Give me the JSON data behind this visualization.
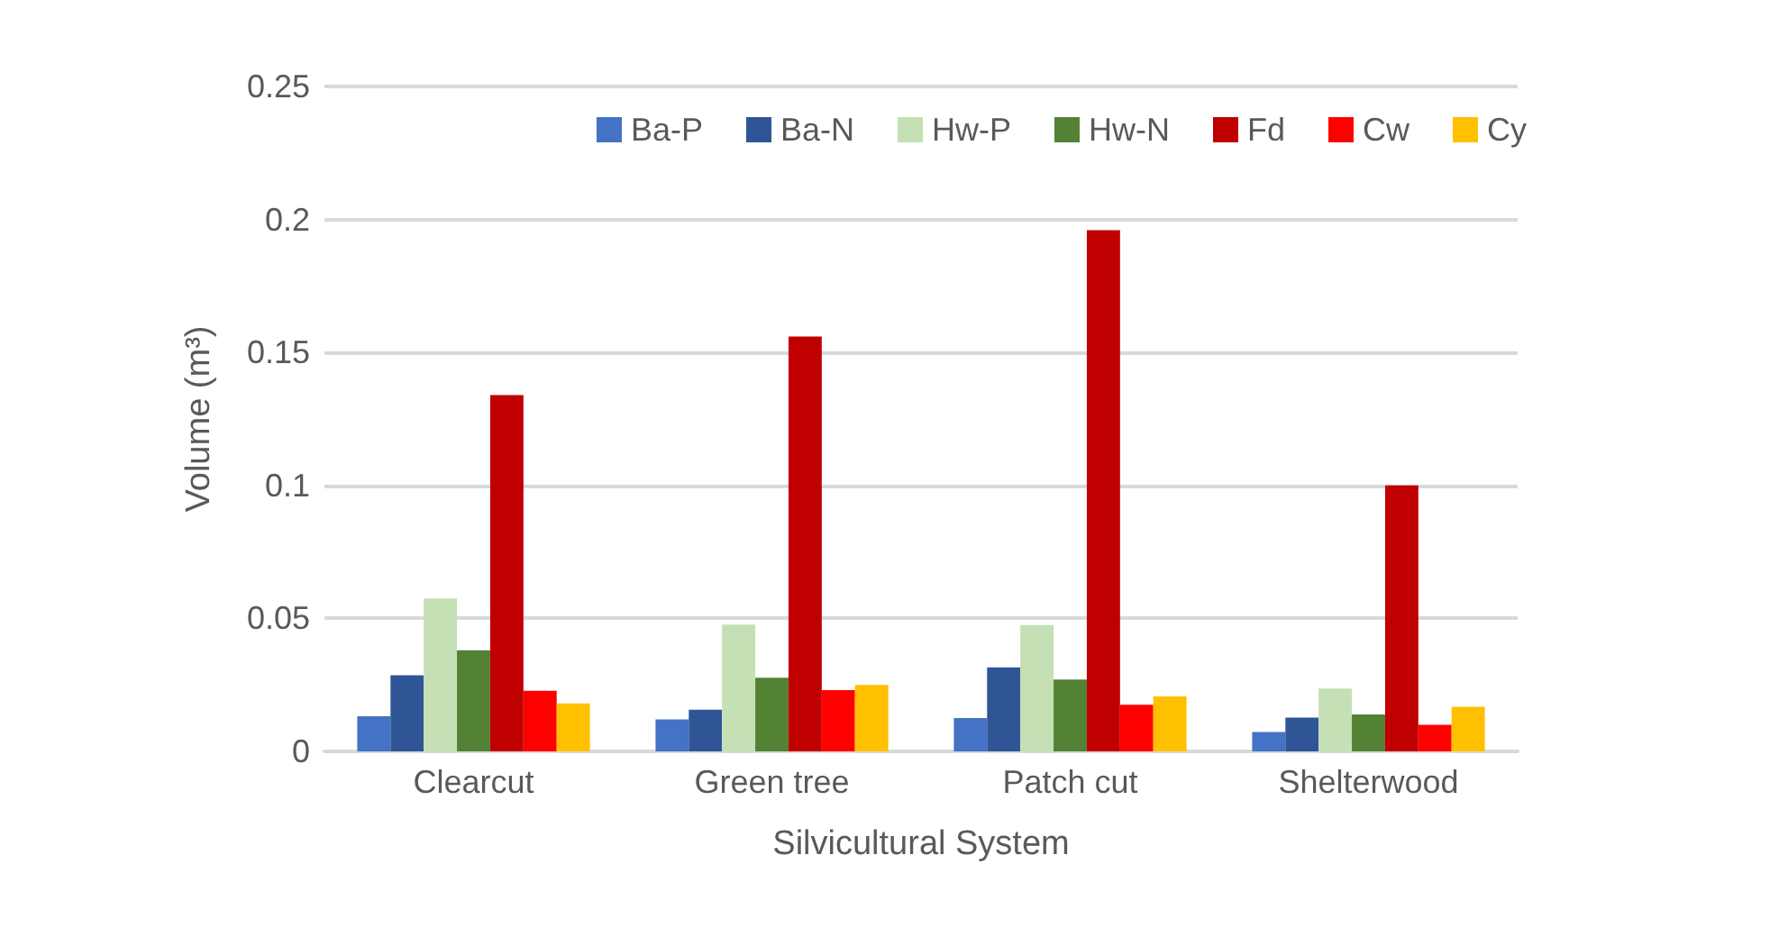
{
  "chart_data": {
    "type": "bar",
    "xlabel": "Silvicultural System",
    "ylabel": "Volume (m³)",
    "categories": [
      "Clearcut",
      "Green tree",
      "Patch cut",
      "Shelterwood"
    ],
    "series": [
      {
        "name": "Ba-P",
        "color": "#4472c4",
        "values": [
          0.0132,
          0.012,
          0.0125,
          0.0073
        ]
      },
      {
        "name": "Ba-N",
        "color": "#2f5597",
        "values": [
          0.0286,
          0.0157,
          0.0316,
          0.0127
        ]
      },
      {
        "name": "Hw-P",
        "color": "#c5e0b4",
        "values": [
          0.0575,
          0.0477,
          0.0475,
          0.0236
        ]
      },
      {
        "name": "Hw-N",
        "color": "#548235",
        "values": [
          0.038,
          0.0277,
          0.027,
          0.0139
        ]
      },
      {
        "name": "Fd",
        "color": "#c00000",
        "values": [
          0.134,
          0.156,
          0.196,
          0.1
        ]
      },
      {
        "name": "Cw",
        "color": "#ff0000",
        "values": [
          0.0228,
          0.023,
          0.0175,
          0.01
        ]
      },
      {
        "name": "Cy",
        "color": "#ffc000",
        "values": [
          0.018,
          0.025,
          0.0207,
          0.0168
        ]
      }
    ],
    "ylim": [
      0,
      0.25
    ],
    "yticks": [
      0,
      0.05,
      0.1,
      0.15,
      0.2,
      0.25
    ],
    "grid": "y",
    "legend": "top right"
  }
}
